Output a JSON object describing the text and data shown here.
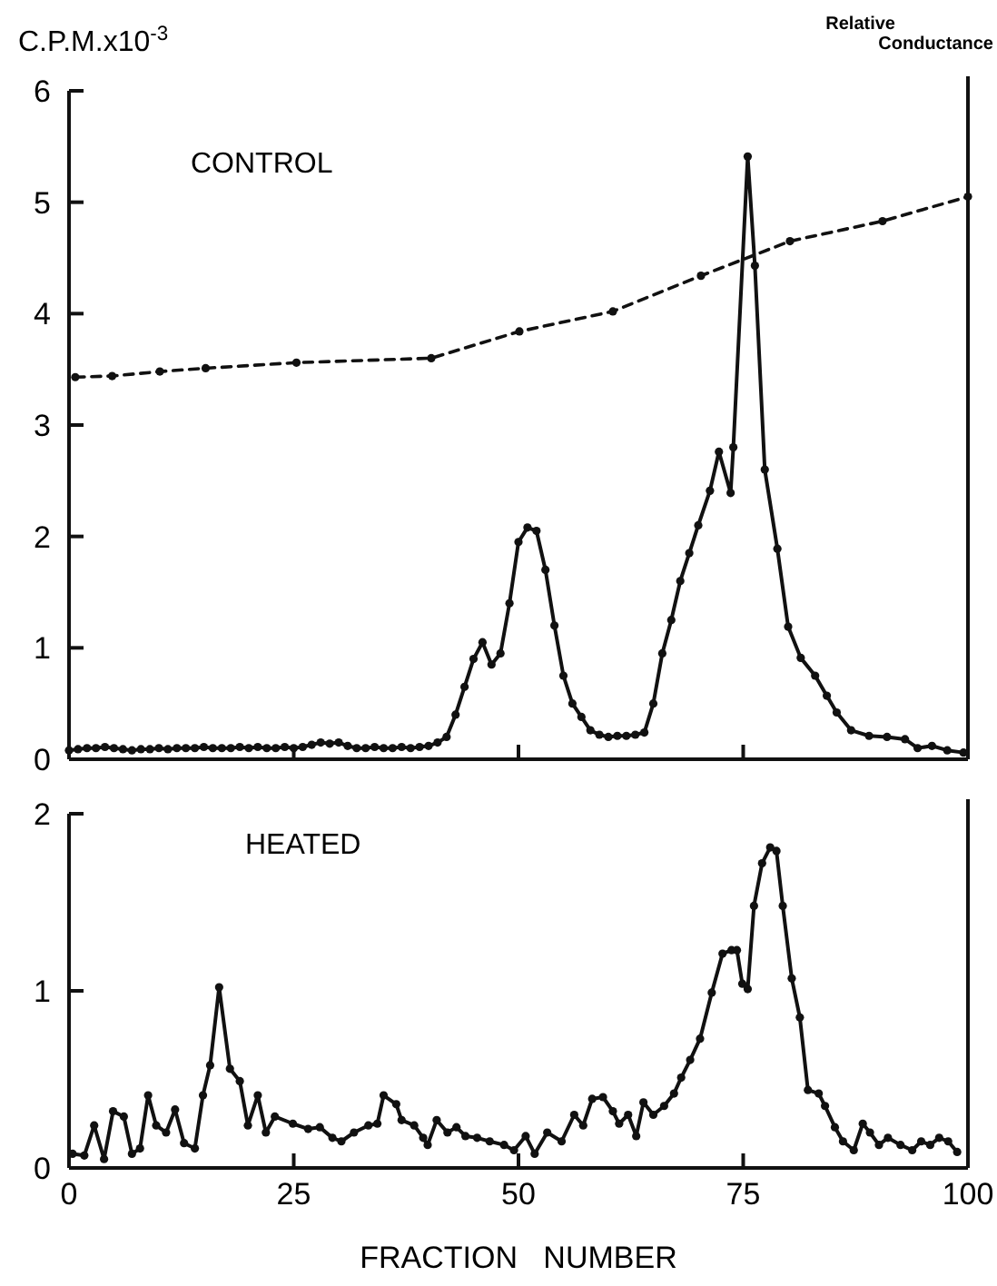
{
  "chart_data": [
    {
      "type": "line",
      "ylabel": "C.P.M.x10$^{-3}$",
      "y2label": "Relative Conductance",
      "annotations": [
        "CONTROL"
      ],
      "xlim": [
        0,
        100
      ],
      "xticks": [
        0,
        25,
        50,
        75,
        100
      ],
      "ylim": [
        0,
        6
      ],
      "yticks": [
        0,
        1,
        2,
        3,
        4,
        5,
        6
      ],
      "tick_labels": "y",
      "marker": "circle",
      "series": [
        {
          "color": "#111111",
          "line_style": "solid",
          "x": [
            0,
            1,
            2,
            3,
            4,
            5,
            6,
            7,
            8,
            9,
            10,
            11,
            12,
            13,
            14,
            15,
            16,
            17,
            18,
            19,
            20,
            21,
            22,
            23,
            24,
            25,
            26,
            27,
            28,
            29,
            30,
            31,
            32,
            33,
            34,
            35,
            36,
            37,
            38,
            39,
            40,
            41,
            42,
            43,
            44,
            45,
            46,
            47,
            48,
            49,
            50,
            51,
            52,
            53,
            54,
            55,
            56,
            57,
            58,
            59,
            60,
            61,
            62,
            63,
            64,
            65,
            66,
            67,
            68,
            69,
            70,
            71.3,
            72.3,
            73.6,
            73.9,
            75.5,
            76.3,
            77.4,
            78.8,
            80,
            81.4,
            83,
            84.3,
            85.4,
            87,
            89,
            91,
            93,
            94.4,
            96,
            97.7,
            99.5
          ],
          "values": [
            0.08,
            0.09,
            0.1,
            0.1,
            0.11,
            0.1,
            0.09,
            0.08,
            0.09,
            0.09,
            0.1,
            0.09,
            0.1,
            0.1,
            0.1,
            0.11,
            0.1,
            0.1,
            0.1,
            0.11,
            0.1,
            0.11,
            0.1,
            0.1,
            0.11,
            0.1,
            0.11,
            0.13,
            0.15,
            0.14,
            0.15,
            0.12,
            0.1,
            0.1,
            0.11,
            0.1,
            0.1,
            0.11,
            0.1,
            0.11,
            0.12,
            0.15,
            0.2,
            0.4,
            0.65,
            0.9,
            1.05,
            0.85,
            0.95,
            1.4,
            1.95,
            2.08,
            2.05,
            1.7,
            1.2,
            0.75,
            0.5,
            0.38,
            0.26,
            0.22,
            0.2,
            0.21,
            0.21,
            0.22,
            0.24,
            0.5,
            0.95,
            1.25,
            1.6,
            1.85,
            2.1,
            2.41,
            2.76,
            2.39,
            2.8,
            5.41,
            4.43,
            2.6,
            1.89,
            1.19,
            0.91,
            0.75,
            0.57,
            0.42,
            0.26,
            0.21,
            0.2,
            0.18,
            0.1,
            0.12,
            0.08,
            0.06
          ]
        },
        {
          "color": "#111111",
          "line_style": "dashed",
          "x": [
            0.7,
            4.8,
            10.1,
            15.2,
            25.3,
            40.3,
            50.1,
            60.5,
            70.3,
            80.2,
            90.5,
            100
          ],
          "values": [
            3.43,
            3.44,
            3.48,
            3.51,
            3.56,
            3.6,
            3.84,
            4.02,
            4.34,
            4.65,
            4.83,
            5.05
          ]
        }
      ]
    },
    {
      "type": "line",
      "xlabel": "FRACTION   NUMBER",
      "annotations": [
        "HEATED"
      ],
      "xlim": [
        0,
        100
      ],
      "xticks": [
        0,
        25,
        50,
        75,
        100
      ],
      "ylim": [
        0,
        2
      ],
      "yticks": [
        0,
        1,
        2
      ],
      "marker": "circle",
      "series": [
        {
          "color": "#111111",
          "line_style": "solid",
          "x": [
            0.4,
            1.7,
            2.8,
            3.9,
            4.9,
            6.1,
            7,
            7.9,
            8.8,
            9.7,
            10.8,
            11.8,
            12.8,
            14,
            14.9,
            15.7,
            16.7,
            17.9,
            19,
            19.9,
            21,
            21.9,
            22.9,
            24.9,
            26.6,
            27.9,
            29.3,
            30.3,
            31.7,
            33.3,
            34.3,
            35,
            36.4,
            37,
            38.4,
            39.4,
            39.9,
            40.9,
            42.1,
            43.1,
            44.1,
            45.4,
            46.8,
            48.4,
            49.5,
            50.8,
            51.8,
            53.2,
            54.8,
            56.2,
            57.2,
            58.2,
            59.4,
            60.5,
            61.2,
            62.2,
            63.1,
            63.9,
            65,
            66.2,
            67.3,
            68.1,
            69.1,
            70.2,
            71.5,
            72.7,
            73.7,
            74.3,
            74.9,
            75.5,
            76.2,
            77.1,
            78,
            78.7,
            79.4,
            80.4,
            81.3,
            82.2,
            83.4,
            84.1,
            85.2,
            86.1,
            87.3,
            88.3,
            89.1,
            90.1,
            91.1,
            92.5,
            93.8,
            94.8,
            95.8,
            96.8,
            97.8,
            98.8
          ],
          "values": [
            0.08,
            0.07,
            0.24,
            0.05,
            0.32,
            0.29,
            0.08,
            0.11,
            0.41,
            0.24,
            0.2,
            0.33,
            0.14,
            0.11,
            0.41,
            0.58,
            1.02,
            0.56,
            0.49,
            0.24,
            0.41,
            0.2,
            0.29,
            0.25,
            0.22,
            0.23,
            0.17,
            0.15,
            0.2,
            0.24,
            0.25,
            0.41,
            0.36,
            0.27,
            0.24,
            0.17,
            0.13,
            0.27,
            0.2,
            0.23,
            0.18,
            0.17,
            0.15,
            0.13,
            0.1,
            0.18,
            0.08,
            0.2,
            0.15,
            0.3,
            0.24,
            0.39,
            0.4,
            0.32,
            0.25,
            0.3,
            0.18,
            0.37,
            0.3,
            0.35,
            0.42,
            0.51,
            0.61,
            0.73,
            0.99,
            1.21,
            1.23,
            1.23,
            1.04,
            1.01,
            1.48,
            1.72,
            1.81,
            1.79,
            1.48,
            1.07,
            0.85,
            0.44,
            0.42,
            0.35,
            0.23,
            0.15,
            0.1,
            0.25,
            0.2,
            0.13,
            0.17,
            0.13,
            0.1,
            0.15,
            0.13,
            0.17,
            0.15,
            0.09
          ]
        }
      ]
    }
  ]
}
